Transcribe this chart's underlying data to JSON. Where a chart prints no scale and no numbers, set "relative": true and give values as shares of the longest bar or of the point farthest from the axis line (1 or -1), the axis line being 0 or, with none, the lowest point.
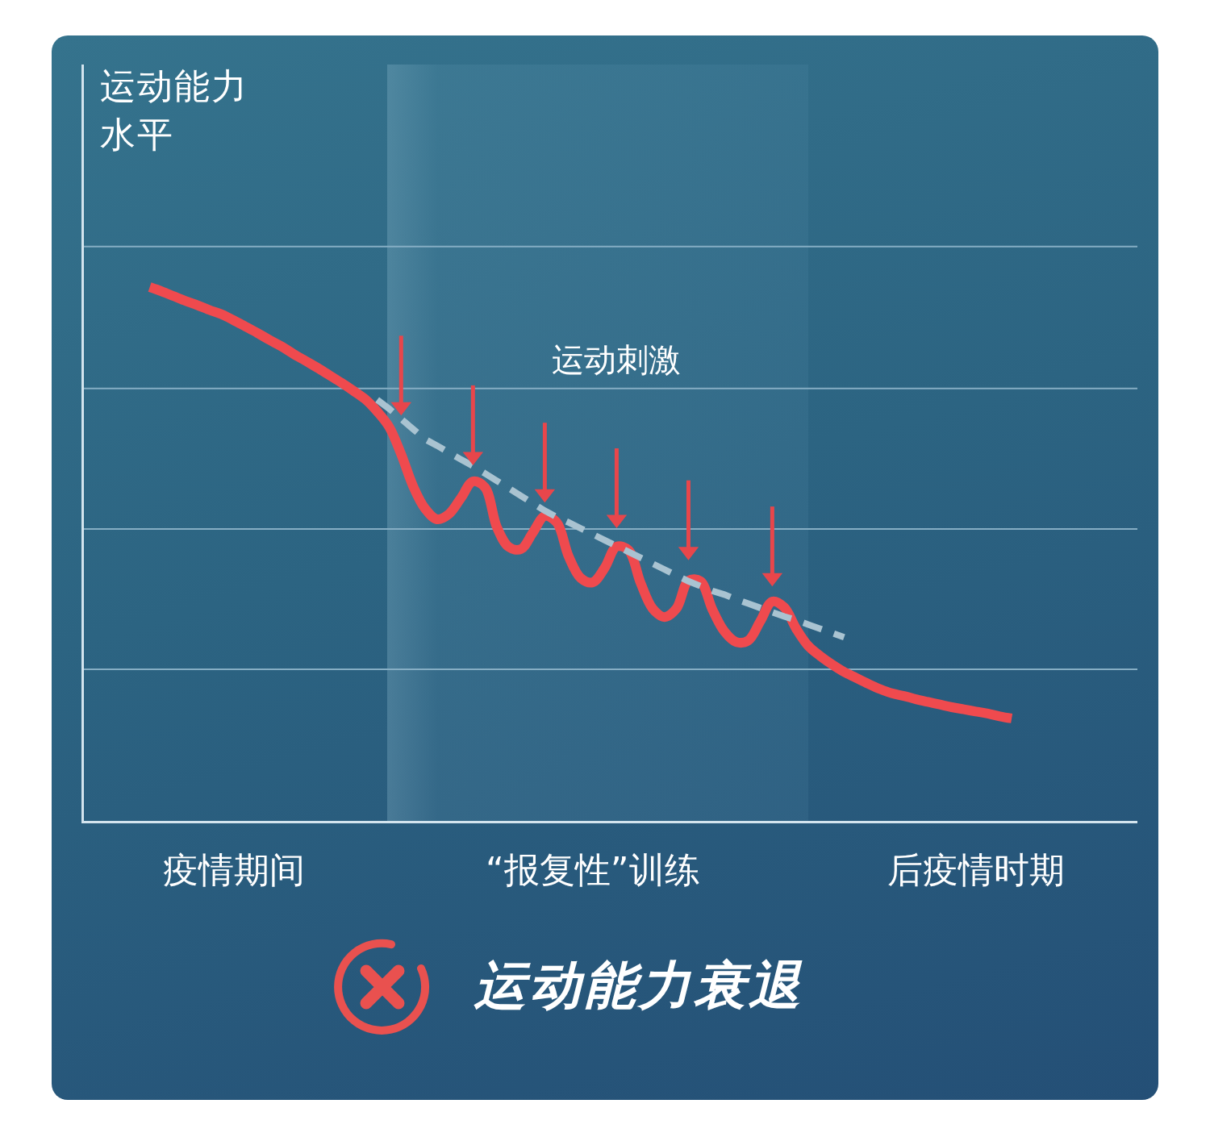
{
  "chart_data": {
    "type": "line",
    "ylabel": "运动能力水平",
    "relative": true,
    "tick_labels": "x",
    "categories": [
      null,
      null,
      null,
      null,
      null,
      null,
      null,
      null,
      null,
      null,
      null,
      null,
      "疫情期间",
      null,
      null,
      null,
      null,
      null,
      null,
      null,
      null,
      null,
      null,
      null,
      null,
      null,
      null,
      null,
      null,
      null,
      null,
      null,
      null,
      null,
      null,
      null,
      null,
      null,
      null,
      null,
      null,
      null,
      "“报复性”训练",
      null,
      null,
      null,
      null,
      null,
      null,
      null,
      null,
      null,
      null,
      null,
      null,
      null,
      null,
      null,
      null,
      null,
      null,
      null,
      null,
      null,
      null,
      null,
      null,
      null,
      null,
      null,
      null,
      null,
      null,
      null,
      "后疫情时期",
      null,
      null,
      null,
      null,
      null,
      null,
      null,
      null,
      null,
      null,
      null,
      null,
      null
    ],
    "ref_lines": [
      {
        "axis": "y",
        "value": 0.284,
        "color": "#86aec4"
      },
      {
        "axis": "y",
        "value": 0.547,
        "color": "#86aec4"
      },
      {
        "axis": "y",
        "value": 0.81,
        "color": "#86aec4"
      },
      {
        "axis": "y",
        "value": 1.076,
        "color": "#86aec4"
      }
    ],
    "annotations": [
      "运动刺激",
      "运动能力衰退"
    ],
    "series": [
      {
        "color": "#ef4a4e",
        "values": [
          null,
          null,
          null,
          null,
          null,
          1.0,
          0.992,
          0.983,
          0.974,
          0.966,
          0.957,
          0.949,
          0.938,
          0.926,
          0.914,
          0.901,
          0.889,
          0.875,
          0.862,
          0.849,
          0.835,
          0.821,
          0.806,
          0.79,
          0.767,
          0.738,
          0.687,
          0.627,
          0.585,
          0.565,
          0.575,
          0.605,
          0.636,
          0.625,
          0.55,
          0.513,
          0.509,
          0.54,
          0.571,
          0.559,
          0.495,
          0.455,
          0.447,
          0.474,
          0.514,
          0.507,
          0.446,
          0.398,
          0.382,
          0.398,
          0.45,
          0.449,
          0.396,
          0.355,
          0.335,
          0.338,
          0.374,
          0.411,
          0.4,
          0.36,
          0.328,
          0.309,
          0.293,
          0.279,
          0.268,
          0.257,
          0.247,
          0.239,
          0.234,
          0.228,
          0.223,
          0.218,
          0.213,
          0.209,
          0.205,
          0.201,
          0.196,
          0.192,
          null,
          null,
          null,
          null,
          null,
          null,
          null,
          null,
          null,
          null
        ]
      },
      {
        "type": "line",
        "color": "#a9c3d1",
        "line_style": "dashed",
        "values": [
          null,
          null,
          null,
          null,
          null,
          null,
          null,
          null,
          null,
          null,
          null,
          null,
          null,
          null,
          null,
          null,
          null,
          null,
          null,
          null,
          null,
          null,
          null,
          null,
          0.789,
          0.772,
          0.753,
          0.734,
          0.715,
          0.703,
          0.69,
          0.677,
          0.665,
          0.651,
          0.637,
          0.623,
          0.609,
          0.595,
          0.581,
          0.569,
          0.559,
          0.548,
          0.537,
          0.526,
          0.515,
          0.504,
          0.493,
          0.482,
          0.471,
          0.46,
          0.449,
          0.44,
          0.431,
          0.424,
          0.415,
          0.407,
          0.399,
          0.391,
          0.383,
          0.376,
          0.368,
          0.36,
          0.352,
          0.344,
          null,
          null,
          null,
          null,
          null,
          null,
          null,
          null,
          null,
          null,
          null,
          null,
          null,
          null,
          null,
          null,
          null,
          null,
          null,
          null,
          null,
          null,
          null,
          null
        ]
      },
      {
        "type": "scatter",
        "color": "#e8464b",
        "marker": "triangle",
        "values": [
          null,
          null,
          null,
          null,
          null,
          null,
          null,
          null,
          null,
          null,
          null,
          null,
          null,
          null,
          null,
          null,
          null,
          null,
          null,
          null,
          null,
          null,
          null,
          null,
          null,
          null,
          0.776,
          null,
          null,
          null,
          null,
          null,
          0.683,
          null,
          null,
          null,
          null,
          null,
          0.613,
          null,
          null,
          null,
          null,
          null,
          0.565,
          null,
          null,
          null,
          null,
          null,
          0.505,
          null,
          null,
          null,
          null,
          null,
          null,
          0.456,
          null,
          null,
          null,
          null,
          null,
          null,
          null,
          null,
          null,
          null,
          null,
          null,
          null,
          null,
          null,
          null,
          null,
          null,
          null,
          null,
          null,
          null,
          null,
          null,
          null,
          null,
          null,
          null,
          null,
          null
        ]
      }
    ]
  }
}
